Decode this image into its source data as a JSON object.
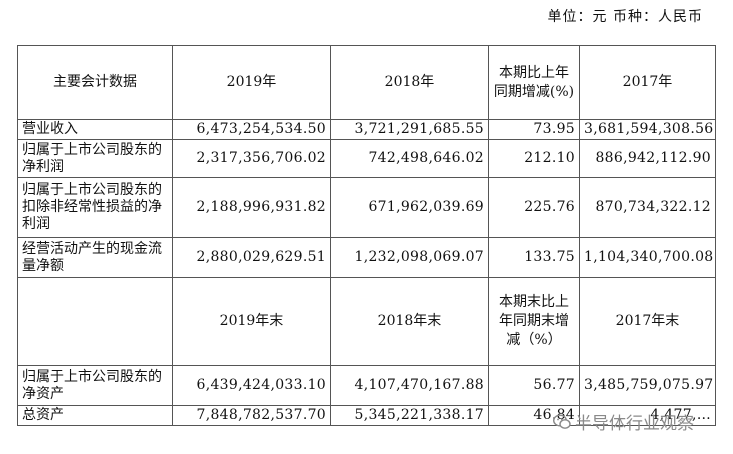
{
  "unit_label": "单位：元   币种：人民币",
  "table1": {
    "headers": [
      "主要会计数据",
      "2019年",
      "2018年",
      "本期比上年同期增减(%)",
      "2017年"
    ],
    "rows": [
      {
        "label": "营业收入",
        "v2019": "6,473,254,534.50",
        "v2018": "3,721,291,685.55",
        "change": "73.95",
        "v2017": "3,681,594,308.56"
      },
      {
        "label": "归属于上市公司股东的净利润",
        "v2019": "2,317,356,706.02",
        "v2018": "742,498,646.02",
        "change": "212.10",
        "v2017": "886,942,112.90"
      },
      {
        "label": "归属于上市公司股东的扣除非经常性损益的净利润",
        "v2019": "2,188,996,931.82",
        "v2018": "671,962,039.69",
        "change": "225.76",
        "v2017": "870,734,322.12"
      },
      {
        "label": "经营活动产生的现金流量净额",
        "v2019": "2,880,029,629.51",
        "v2018": "1,232,098,069.07",
        "change": "133.75",
        "v2017": "1,104,340,700.08"
      }
    ]
  },
  "table2": {
    "headers": [
      "",
      "2019年末",
      "2018年末",
      "本期末比上年同期末增减（%）",
      "2017年末"
    ],
    "rows": [
      {
        "label": "归属于上市公司股东的净资产",
        "v2019": "6,439,424,033.10",
        "v2018": "4,107,470,167.88",
        "change": "56.77",
        "v2017": "3,485,759,075.97"
      },
      {
        "label": "总资产",
        "v2019": "7,848,782,537.70",
        "v2018": "5,345,221,338.17",
        "change": "46.84",
        "v2017": "4,477,…"
      }
    ]
  },
  "watermark": {
    "text": "半导体行业观察",
    "icon": "wechat-icon"
  }
}
